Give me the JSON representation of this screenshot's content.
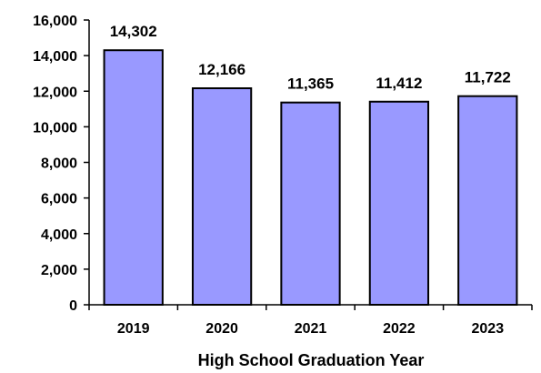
{
  "chart_data": {
    "type": "bar",
    "title": "",
    "xlabel": "High School Graduation Year",
    "ylabel": "",
    "categories": [
      "2019",
      "2020",
      "2021",
      "2022",
      "2023"
    ],
    "values": [
      14302,
      12166,
      11365,
      11412,
      11722
    ],
    "value_labels": [
      "14,302",
      "12,166",
      "11,365",
      "11,412",
      "11,722"
    ],
    "ylim": [
      0,
      16000
    ],
    "yticks": [
      0,
      2000,
      4000,
      6000,
      8000,
      10000,
      12000,
      14000,
      16000
    ],
    "ytick_labels": [
      "0",
      "2,000",
      "4,000",
      "6,000",
      "8,000",
      "10,000",
      "12,000",
      "14,000",
      "16,000"
    ],
    "grid": false,
    "legend": "none",
    "bar_color": "#9999ff",
    "bar_edge_color": "#000000"
  }
}
